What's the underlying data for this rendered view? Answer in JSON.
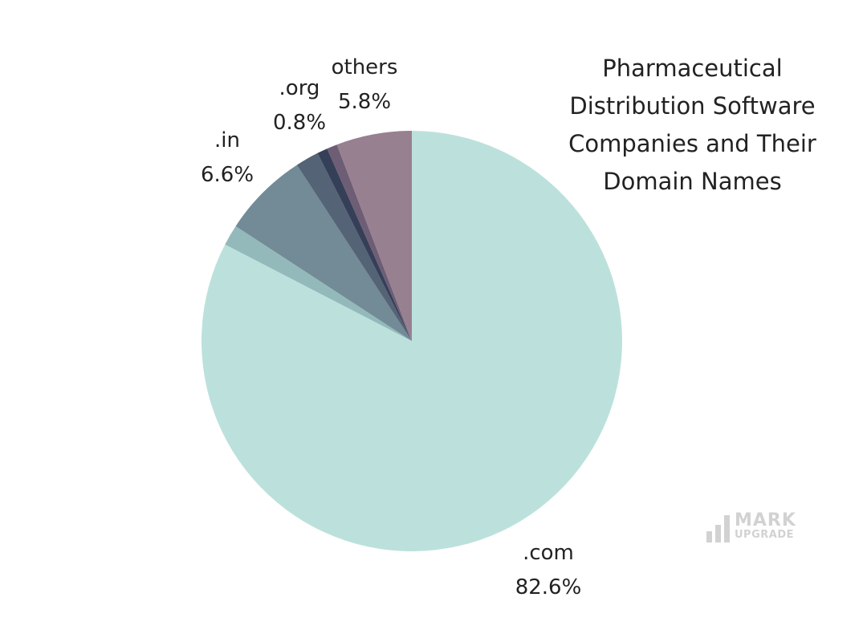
{
  "chart_data": {
    "type": "pie",
    "title": "Pharmaceutical Distribution Software Companies and Their Domain Names",
    "slices": [
      {
        "label": ".com",
        "value": 82.6,
        "display": "82.6%",
        "color": "#bce1dc",
        "labelled": true
      },
      {
        "label": "",
        "value": 1.6,
        "display": "",
        "color": "#94b9bb",
        "labelled": false
      },
      {
        "label": ".in",
        "value": 6.6,
        "display": "6.6%",
        "color": "#728b96",
        "labelled": true
      },
      {
        "label": "",
        "value": 1.8,
        "display": "",
        "color": "#546376",
        "labelled": false
      },
      {
        "label": "",
        "value": 0.8,
        "display": "",
        "color": "#363f58",
        "labelled": false
      },
      {
        "label": ".org",
        "value": 0.8,
        "display": "0.8%",
        "color": "#6d5d75",
        "labelled": true
      },
      {
        "label": "others",
        "value": 5.8,
        "display": "5.8%",
        "color": "#978090",
        "labelled": true
      }
    ],
    "direction": "clockwise",
    "start": "top",
    "legend": "none"
  },
  "logo": {
    "word_top": "MARK",
    "word_bottom": "UPGRADE"
  }
}
